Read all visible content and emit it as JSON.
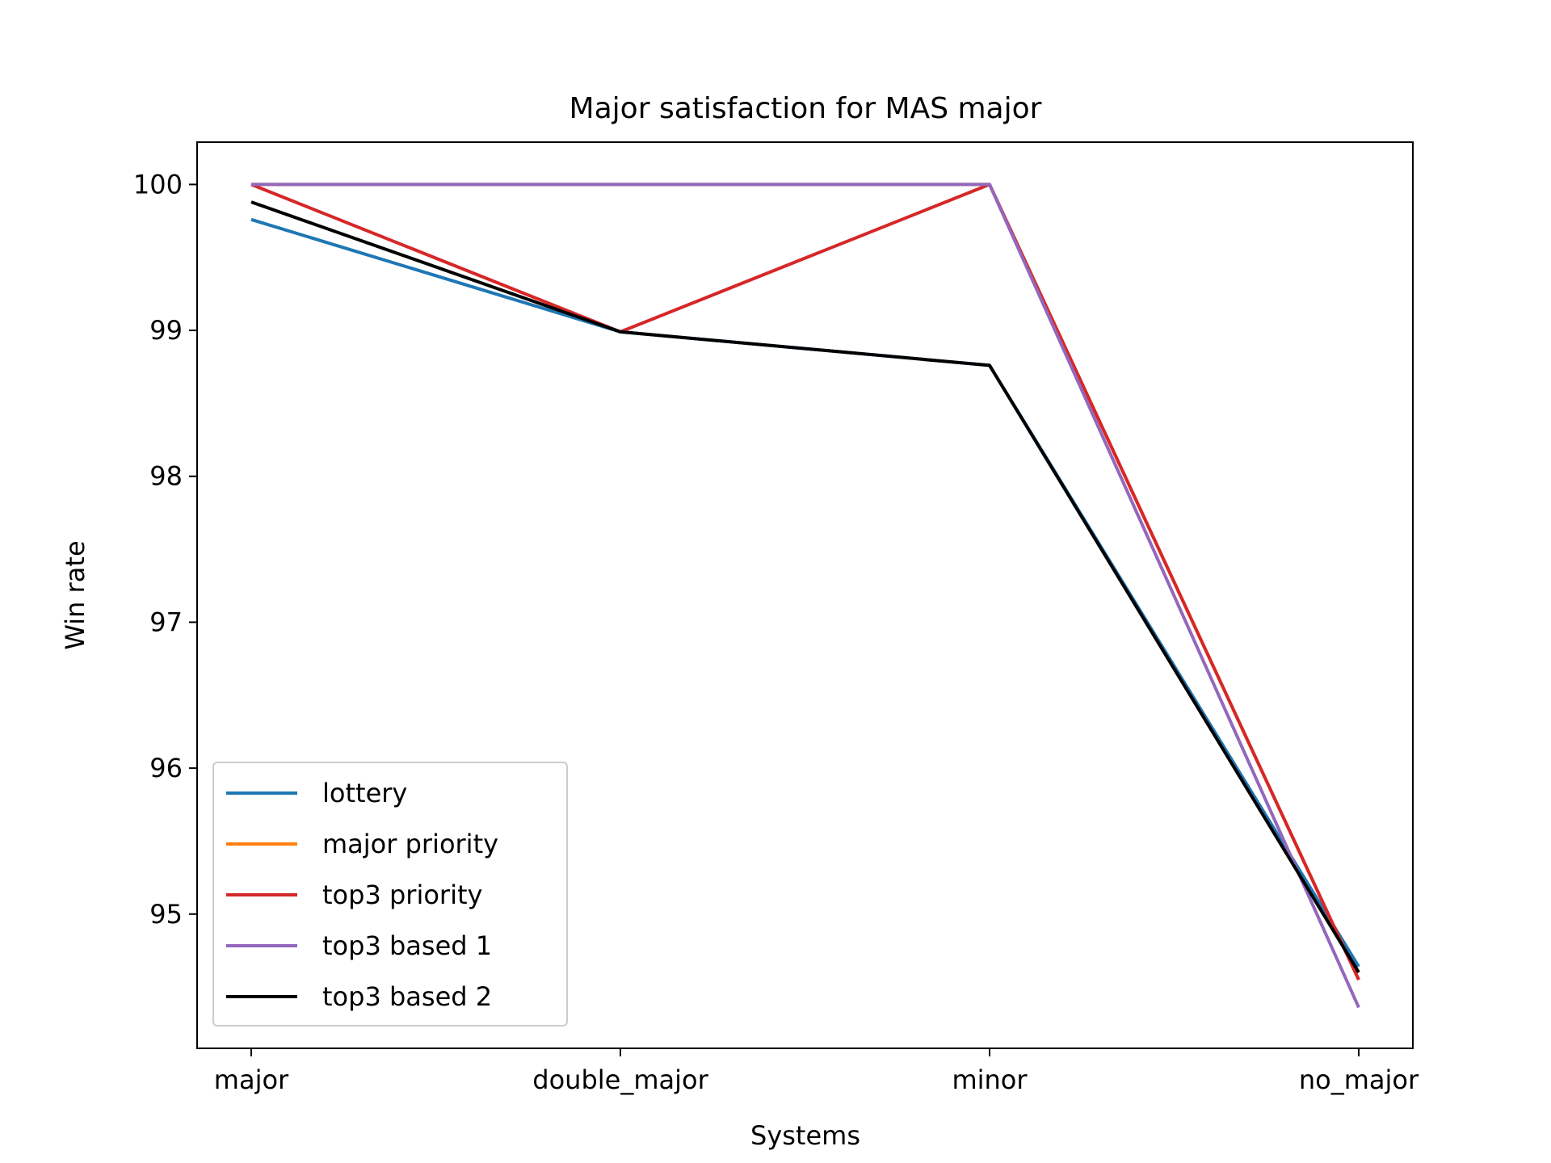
{
  "chart_data": {
    "type": "line",
    "title": "Major satisfaction for MAS major",
    "xlabel": "Systems",
    "ylabel": "Win rate",
    "categories": [
      "major",
      "double_major",
      "minor",
      "no_major"
    ],
    "yticks": [
      95,
      96,
      97,
      98,
      99,
      100
    ],
    "ylim": [
      94.08,
      100.29
    ],
    "grid": false,
    "legend_position": "lower-left",
    "series": [
      {
        "name": "lottery",
        "color": "#1f77b4",
        "values": [
          99.76,
          98.99,
          98.76,
          94.64
        ]
      },
      {
        "name": "major priority",
        "color": "#ff7f0e",
        "values": [
          100.0,
          100.0,
          100.0,
          94.55
        ]
      },
      {
        "name": "top3 priority",
        "color": "#d62728",
        "values": [
          100.0,
          98.99,
          100.0,
          94.55
        ]
      },
      {
        "name": "top3 based 1",
        "color": "#9467bd",
        "values": [
          100.0,
          100.0,
          100.0,
          94.36
        ]
      },
      {
        "name": "top3 based 2",
        "color": "#000000",
        "values": [
          99.88,
          98.99,
          98.76,
          94.6
        ]
      }
    ]
  }
}
